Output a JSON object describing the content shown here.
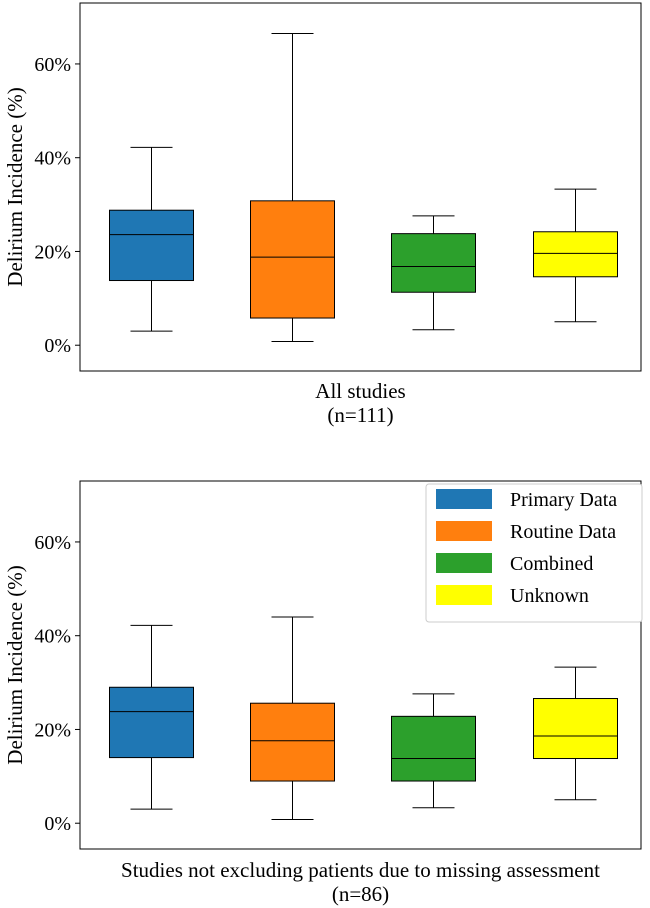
{
  "chart_data": [
    {
      "type": "box",
      "title": "",
      "xlabel": "All studies",
      "xlabel_line2": "(n=111)",
      "ylabel": "Delirium Incidence (%)",
      "ylim": [
        -5.5,
        73
      ],
      "yticks": [
        0,
        20,
        40,
        60
      ],
      "ytick_labels": [
        "0%",
        "20%",
        "40%",
        "60%"
      ],
      "grid": false,
      "legend": false,
      "series": [
        {
          "name": "Primary Data",
          "min": 3.0,
          "q1": 13.8,
          "median": 23.6,
          "q3": 28.8,
          "max": 42.2
        },
        {
          "name": "Routine Data",
          "min": 0.8,
          "q1": 5.8,
          "median": 18.8,
          "q3": 30.8,
          "max": 66.5
        },
        {
          "name": "Combined",
          "min": 3.3,
          "q1": 11.3,
          "median": 16.8,
          "q3": 23.8,
          "max": 27.6
        },
        {
          "name": "Unknown",
          "min": 5.0,
          "q1": 14.6,
          "median": 19.6,
          "q3": 24.2,
          "max": 33.3
        }
      ]
    },
    {
      "type": "box",
      "title": "",
      "xlabel": "Studies not excluding patients due to missing assessment",
      "xlabel_line2": "(n=86)",
      "ylabel": "Delirium Incidence (%)",
      "ylim": [
        -5.5,
        73
      ],
      "yticks": [
        0,
        20,
        40,
        60
      ],
      "ytick_labels": [
        "0%",
        "20%",
        "40%",
        "60%"
      ],
      "grid": false,
      "legend": true,
      "legend_position": "top-right",
      "series": [
        {
          "name": "Primary Data",
          "min": 3.0,
          "q1": 14.0,
          "median": 23.8,
          "q3": 29.0,
          "max": 42.2
        },
        {
          "name": "Routine Data",
          "min": 0.8,
          "q1": 9.0,
          "median": 17.6,
          "q3": 25.6,
          "max": 44.0
        },
        {
          "name": "Combined",
          "min": 3.3,
          "q1": 9.0,
          "median": 13.8,
          "q3": 22.8,
          "max": 27.6
        },
        {
          "name": "Unknown",
          "min": 5.0,
          "q1": 13.8,
          "median": 18.6,
          "q3": 26.6,
          "max": 33.3
        }
      ]
    }
  ],
  "legend": [
    {
      "name": "Primary Data",
      "color": "#1f77b4"
    },
    {
      "name": "Routine Data",
      "color": "#ff7f0e"
    },
    {
      "name": "Combined",
      "color": "#2ca02c"
    },
    {
      "name": "Unknown",
      "color": "#ffff00"
    }
  ]
}
